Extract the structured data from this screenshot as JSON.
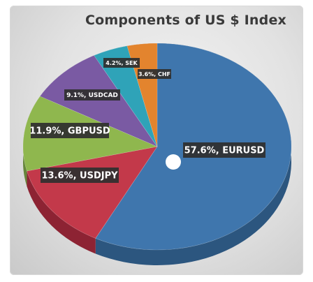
{
  "chart_data": {
    "type": "pie",
    "title": "Components of US $ Index",
    "slices": [
      {
        "label": "EURUSD",
        "value": 57.6,
        "display": "57.6%, EURUSD",
        "color": "#3f76ad",
        "side": "#2c567f"
      },
      {
        "label": "USDJPY",
        "value": 13.6,
        "display": "13.6%, USDJPY",
        "color": "#c3394a",
        "side": "#8d2333"
      },
      {
        "label": "GBPUSD",
        "value": 11.9,
        "display": "11.9%, GBPUSD",
        "color": "#8fb74e",
        "side": "#66863a"
      },
      {
        "label": "USDCAD",
        "value": 9.1,
        "display": "9.1%, USDCAD",
        "color": "#7a5aa3",
        "side": "#563f73"
      },
      {
        "label": "SEK",
        "value": 4.2,
        "display": "4.2%, SEK",
        "color": "#2fa3b8",
        "side": "#1f7384"
      },
      {
        "label": "CHF",
        "value": 3.6,
        "display": "3.6%, CHF",
        "color": "#e3842e",
        "side": "#a75e1f"
      }
    ]
  }
}
